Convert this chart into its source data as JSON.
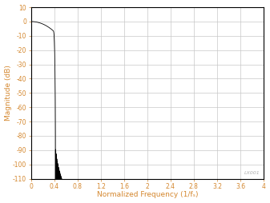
{
  "title": "",
  "xlabel": "Normalized Frequency (1/fₛ)",
  "ylabel": "Magnitude (dB)",
  "xlim": [
    0,
    4
  ],
  "ylim": [
    -110,
    10
  ],
  "xticks": [
    0,
    0.4,
    0.8,
    1.2,
    1.6,
    2.0,
    2.4,
    2.8,
    3.2,
    3.6,
    4.0
  ],
  "yticks": [
    10,
    0,
    -10,
    -20,
    -30,
    -40,
    -50,
    -60,
    -70,
    -80,
    -90,
    -100,
    -110
  ],
  "line_color": "#000000",
  "grid_color": "#c8c8c8",
  "axis_label_color": "#d4872e",
  "background_color": "#ffffff",
  "watermark": "LX001"
}
